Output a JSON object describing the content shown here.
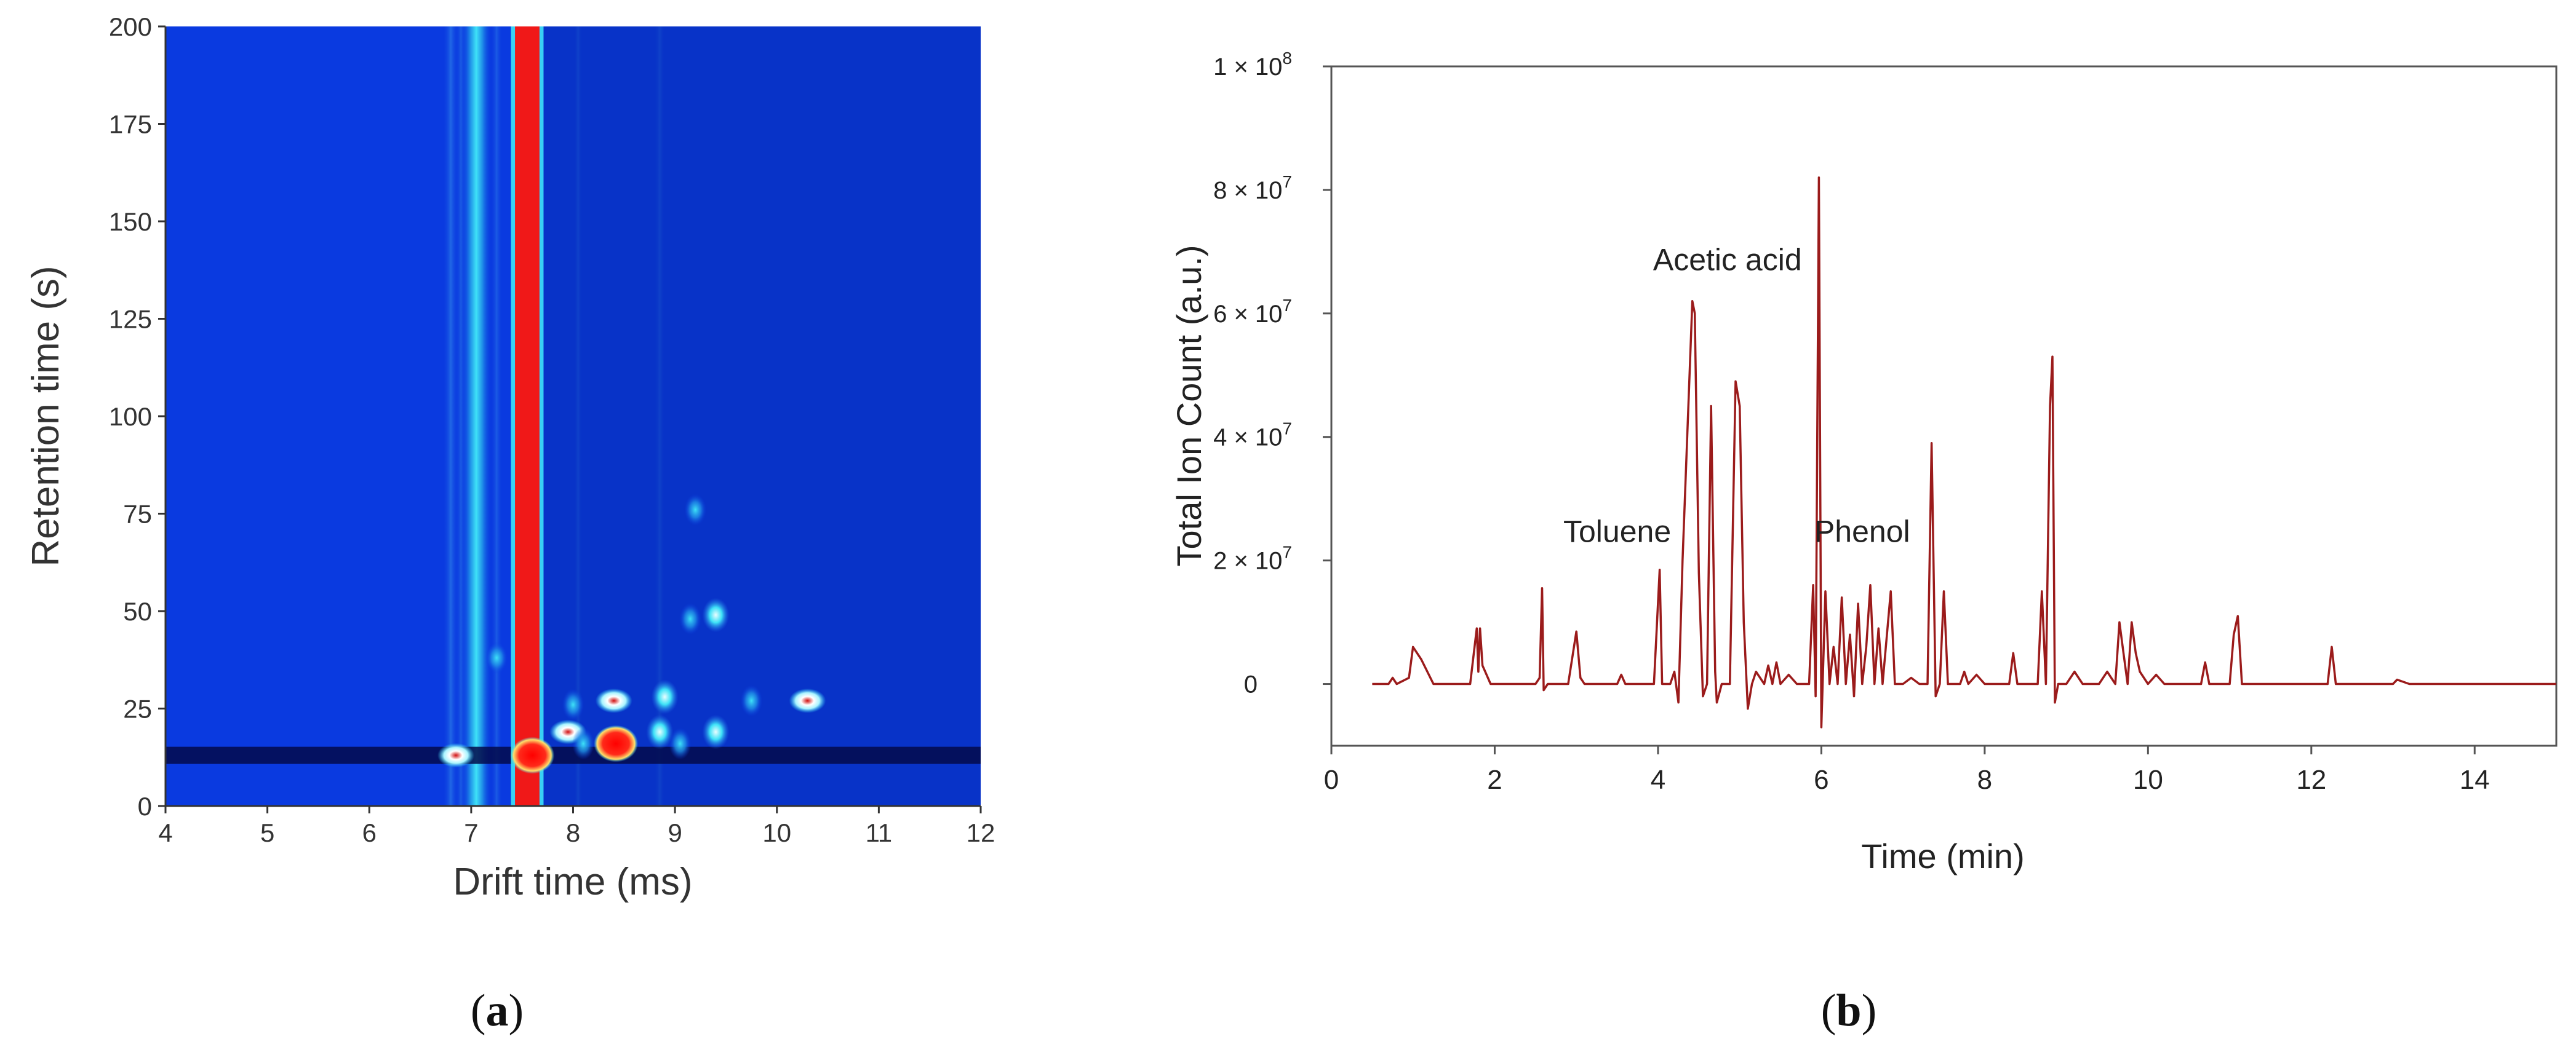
{
  "panels": {
    "a": {
      "label_open": "(",
      "label_letter": "a",
      "label_close": ")"
    },
    "b": {
      "label_open": "(",
      "label_letter": "b",
      "label_close": ")"
    }
  },
  "colors": {
    "heatmap_background": "#0a3ae0",
    "heatmap_band_dark": "#030a4a",
    "heatmap_red": "#f01818",
    "heatmap_cyan": "#23d3f5",
    "line_color": "#9b1b1b",
    "axis_color": "#333333"
  },
  "chart_data": [
    {
      "type": "heatmap",
      "xlabel": "Drift time (ms)",
      "ylabel": "Retention time (s)",
      "xlim": [
        4,
        12
      ],
      "ylim": [
        0,
        200
      ],
      "xticks": [
        4,
        5,
        6,
        7,
        8,
        9,
        10,
        11,
        12
      ],
      "yticks": [
        0,
        25,
        50,
        75,
        100,
        125,
        150,
        175,
        200
      ],
      "grid": false,
      "reactant_ion_peak_drift_ms": 7.55,
      "dark_band_retention_s": 13,
      "spots": [
        {
          "x": 6.85,
          "y": 13,
          "level": "high"
        },
        {
          "x": 7.6,
          "y": 13,
          "level": "max"
        },
        {
          "x": 7.95,
          "y": 19,
          "level": "high"
        },
        {
          "x": 8.4,
          "y": 27,
          "level": "high"
        },
        {
          "x": 8.42,
          "y": 16,
          "level": "max"
        },
        {
          "x": 8.85,
          "y": 19,
          "level": "medium"
        },
        {
          "x": 8.9,
          "y": 28,
          "level": "medium"
        },
        {
          "x": 9.4,
          "y": 19,
          "level": "medium"
        },
        {
          "x": 10.3,
          "y": 27,
          "level": "high"
        },
        {
          "x": 9.4,
          "y": 49,
          "level": "medium"
        },
        {
          "x": 9.2,
          "y": 76,
          "level": "low"
        },
        {
          "x": 8.1,
          "y": 16,
          "level": "low"
        },
        {
          "x": 8.0,
          "y": 26,
          "level": "low"
        },
        {
          "x": 9.05,
          "y": 16,
          "level": "low"
        },
        {
          "x": 9.75,
          "y": 27,
          "level": "low"
        },
        {
          "x": 9.15,
          "y": 48,
          "level": "low"
        },
        {
          "x": 7.25,
          "y": 38,
          "level": "low"
        }
      ]
    },
    {
      "type": "line",
      "xlabel": "Time (min)",
      "ylabel": "Total Ion Count (a.u.)",
      "xlim": [
        0,
        15
      ],
      "ylim": [
        -10000000,
        100000000
      ],
      "xticks": [
        0,
        2,
        4,
        6,
        8,
        10,
        12,
        14
      ],
      "yticks": [
        {
          "value": 0,
          "label": "0"
        },
        {
          "value": 20000000,
          "label": "2 × 10",
          "exp": "7"
        },
        {
          "value": 40000000,
          "label": "4 × 10",
          "exp": "7"
        },
        {
          "value": 60000000,
          "label": "6 × 10",
          "exp": "7"
        },
        {
          "value": 80000000,
          "label": "8 × 10",
          "exp": "7"
        },
        {
          "value": 100000000,
          "label": "1 × 10",
          "exp": "8"
        }
      ],
      "grid": false,
      "annotations": [
        {
          "text": "Acetic acid",
          "x": 4.85,
          "y": 67000000
        },
        {
          "text": "Toluene",
          "x": 3.5,
          "y": 23000000
        },
        {
          "text": "Phenol",
          "x": 6.5,
          "y": 23000000
        }
      ],
      "series": [
        {
          "values": [
            [
              0.5,
              0
            ],
            [
              0.7,
              0
            ],
            [
              0.75,
              1000000
            ],
            [
              0.8,
              0
            ],
            [
              0.95,
              1000000
            ],
            [
              1.0,
              6000000
            ],
            [
              1.1,
              4000000
            ],
            [
              1.25,
              0
            ],
            [
              1.7,
              0
            ],
            [
              1.78,
              9000000
            ],
            [
              1.8,
              2000000
            ],
            [
              1.82,
              9000000
            ],
            [
              1.85,
              3000000
            ],
            [
              1.95,
              0
            ],
            [
              2.5,
              0
            ],
            [
              2.55,
              1000000
            ],
            [
              2.58,
              15500000
            ],
            [
              2.6,
              -1000000
            ],
            [
              2.65,
              0
            ],
            [
              2.9,
              0
            ],
            [
              3.0,
              8500000
            ],
            [
              3.05,
              1000000
            ],
            [
              3.1,
              0
            ],
            [
              3.5,
              0
            ],
            [
              3.55,
              1500000
            ],
            [
              3.6,
              0
            ],
            [
              3.95,
              0
            ],
            [
              4.02,
              18500000
            ],
            [
              4.05,
              0
            ],
            [
              4.15,
              0
            ],
            [
              4.2,
              2000000
            ],
            [
              4.25,
              -3000000
            ],
            [
              4.3,
              20000000
            ],
            [
              4.42,
              62000000
            ],
            [
              4.45,
              60000000
            ],
            [
              4.5,
              18000000
            ],
            [
              4.55,
              -2000000
            ],
            [
              4.6,
              0
            ],
            [
              4.65,
              45000000
            ],
            [
              4.7,
              2000000
            ],
            [
              4.72,
              -3000000
            ],
            [
              4.78,
              0
            ],
            [
              4.88,
              0
            ],
            [
              4.95,
              49000000
            ],
            [
              5.0,
              45000000
            ],
            [
              5.05,
              10000000
            ],
            [
              5.1,
              -4000000
            ],
            [
              5.15,
              0
            ],
            [
              5.2,
              2000000
            ],
            [
              5.3,
              0
            ],
            [
              5.35,
              3000000
            ],
            [
              5.4,
              0
            ],
            [
              5.45,
              3500000
            ],
            [
              5.5,
              0
            ],
            [
              5.6,
              1500000
            ],
            [
              5.7,
              0
            ],
            [
              5.85,
              0
            ],
            [
              5.9,
              16000000
            ],
            [
              5.93,
              -2000000
            ],
            [
              5.97,
              82000000
            ],
            [
              6.0,
              -7000000
            ],
            [
              6.05,
              15000000
            ],
            [
              6.1,
              0
            ],
            [
              6.15,
              6000000
            ],
            [
              6.2,
              0
            ],
            [
              6.25,
              14000000
            ],
            [
              6.3,
              0
            ],
            [
              6.35,
              8000000
            ],
            [
              6.4,
              -2000000
            ],
            [
              6.45,
              13000000
            ],
            [
              6.5,
              0
            ],
            [
              6.55,
              6000000
            ],
            [
              6.6,
              16000000
            ],
            [
              6.65,
              0
            ],
            [
              6.7,
              9000000
            ],
            [
              6.75,
              0
            ],
            [
              6.85,
              15000000
            ],
            [
              6.9,
              0
            ],
            [
              7.0,
              0
            ],
            [
              7.1,
              1000000
            ],
            [
              7.2,
              0
            ],
            [
              7.3,
              0
            ],
            [
              7.35,
              39000000
            ],
            [
              7.4,
              -2000000
            ],
            [
              7.45,
              0
            ],
            [
              7.5,
              15000000
            ],
            [
              7.55,
              0
            ],
            [
              7.7,
              0
            ],
            [
              7.75,
              2000000
            ],
            [
              7.8,
              0
            ],
            [
              7.9,
              1500000
            ],
            [
              8.0,
              0
            ],
            [
              8.3,
              0
            ],
            [
              8.35,
              5000000
            ],
            [
              8.4,
              0
            ],
            [
              8.65,
              0
            ],
            [
              8.7,
              15000000
            ],
            [
              8.75,
              0
            ],
            [
              8.8,
              45000000
            ],
            [
              8.83,
              53000000
            ],
            [
              8.86,
              -3000000
            ],
            [
              8.9,
              0
            ],
            [
              9.0,
              0
            ],
            [
              9.1,
              2000000
            ],
            [
              9.2,
              0
            ],
            [
              9.4,
              0
            ],
            [
              9.5,
              2000000
            ],
            [
              9.6,
              0
            ],
            [
              9.65,
              10000000
            ],
            [
              9.7,
              5000000
            ],
            [
              9.75,
              0
            ],
            [
              9.8,
              10000000
            ],
            [
              9.85,
              5000000
            ],
            [
              9.9,
              2000000
            ],
            [
              10.0,
              0
            ],
            [
              10.1,
              1500000
            ],
            [
              10.2,
              0
            ],
            [
              10.65,
              0
            ],
            [
              10.7,
              3500000
            ],
            [
              10.75,
              0
            ],
            [
              11.0,
              0
            ],
            [
              11.05,
              8000000
            ],
            [
              11.1,
              11000000
            ],
            [
              11.15,
              0
            ],
            [
              11.3,
              0
            ],
            [
              12.2,
              0
            ],
            [
              12.25,
              6000000
            ],
            [
              12.3,
              0
            ],
            [
              13.0,
              0
            ],
            [
              13.05,
              700000
            ],
            [
              13.2,
              0
            ],
            [
              15.0,
              0
            ]
          ]
        }
      ]
    }
  ]
}
